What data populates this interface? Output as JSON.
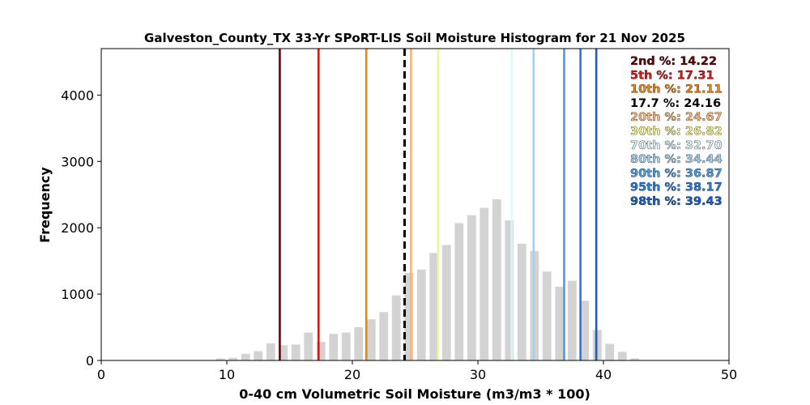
{
  "chart_data": {
    "type": "bar",
    "title": "Galveston_County_TX 33-Yr SPoRT-LIS Soil Moisture Histogram for 21 Nov 2025",
    "xlabel": "0-40 cm Volumetric Soil Moisture (m3/m3 * 100)",
    "ylabel": "Frequency",
    "xlim": [
      0,
      50
    ],
    "ylim": [
      0,
      4700
    ],
    "xticks": [
      0,
      10,
      20,
      30,
      40,
      50
    ],
    "yticks": [
      0,
      1000,
      2000,
      3000,
      4000
    ],
    "bar_color": "#d3d3d3",
    "bar_width": 0.7,
    "bars": [
      {
        "x": 9.5,
        "value": 30
      },
      {
        "x": 10.5,
        "value": 40
      },
      {
        "x": 11.5,
        "value": 100
      },
      {
        "x": 12.5,
        "value": 140
      },
      {
        "x": 13.5,
        "value": 260
      },
      {
        "x": 14.5,
        "value": 230
      },
      {
        "x": 15.5,
        "value": 240
      },
      {
        "x": 16.5,
        "value": 420
      },
      {
        "x": 17.5,
        "value": 280
      },
      {
        "x": 18.5,
        "value": 400
      },
      {
        "x": 19.5,
        "value": 420
      },
      {
        "x": 20.5,
        "value": 500
      },
      {
        "x": 21.5,
        "value": 620
      },
      {
        "x": 22.5,
        "value": 730
      },
      {
        "x": 23.5,
        "value": 980
      },
      {
        "x": 24.5,
        "value": 1320
      },
      {
        "x": 25.5,
        "value": 1370
      },
      {
        "x": 26.5,
        "value": 1620
      },
      {
        "x": 27.5,
        "value": 1740
      },
      {
        "x": 28.5,
        "value": 2070
      },
      {
        "x": 29.5,
        "value": 2190
      },
      {
        "x": 30.5,
        "value": 2300
      },
      {
        "x": 31.5,
        "value": 2430
      },
      {
        "x": 32.5,
        "value": 2110
      },
      {
        "x": 33.5,
        "value": 1760
      },
      {
        "x": 34.5,
        "value": 1650
      },
      {
        "x": 35.5,
        "value": 1340
      },
      {
        "x": 36.5,
        "value": 1110
      },
      {
        "x": 37.5,
        "value": 1200
      },
      {
        "x": 38.5,
        "value": 900
      },
      {
        "x": 39.5,
        "value": 460
      },
      {
        "x": 40.5,
        "value": 250
      },
      {
        "x": 41.5,
        "value": 130
      },
      {
        "x": 42.5,
        "value": 30
      }
    ],
    "percentile_lines": [
      {
        "label": "2nd %",
        "value": "14.22",
        "x": 14.22,
        "color": "#5c0a0a",
        "dashed": false
      },
      {
        "label": "5th %",
        "value": "17.31",
        "x": 17.31,
        "color": "#d11a1a",
        "dashed": false
      },
      {
        "label": "10th %",
        "value": "21.11",
        "x": 21.11,
        "color": "#e8831a",
        "dashed": false
      },
      {
        "label": "17.7 %",
        "value": "24.16",
        "x": 24.16,
        "color": "#000000",
        "dashed": true
      },
      {
        "label": "20th %",
        "value": "24.67",
        "x": 24.67,
        "color": "#f6b57a",
        "dashed": false
      },
      {
        "label": "30th %",
        "value": "26.82",
        "x": 26.82,
        "color": "#f7f58a",
        "dashed": false
      },
      {
        "label": "70th %",
        "value": "32.70",
        "x": 32.7,
        "color": "#e0f4fb",
        "dashed": false
      },
      {
        "label": "80th %",
        "value": "34.44",
        "x": 34.44,
        "color": "#a3cff0",
        "dashed": false
      },
      {
        "label": "90th %",
        "value": "36.87",
        "x": 36.87,
        "color": "#4d9be0",
        "dashed": false
      },
      {
        "label": "95th %",
        "value": "38.17",
        "x": 38.17,
        "color": "#2a7ad6",
        "dashed": false
      },
      {
        "label": "98th %",
        "value": "39.43",
        "x": 39.43,
        "color": "#1c5fba",
        "dashed": false
      }
    ],
    "legend_placement": "top-right",
    "grid": false
  }
}
